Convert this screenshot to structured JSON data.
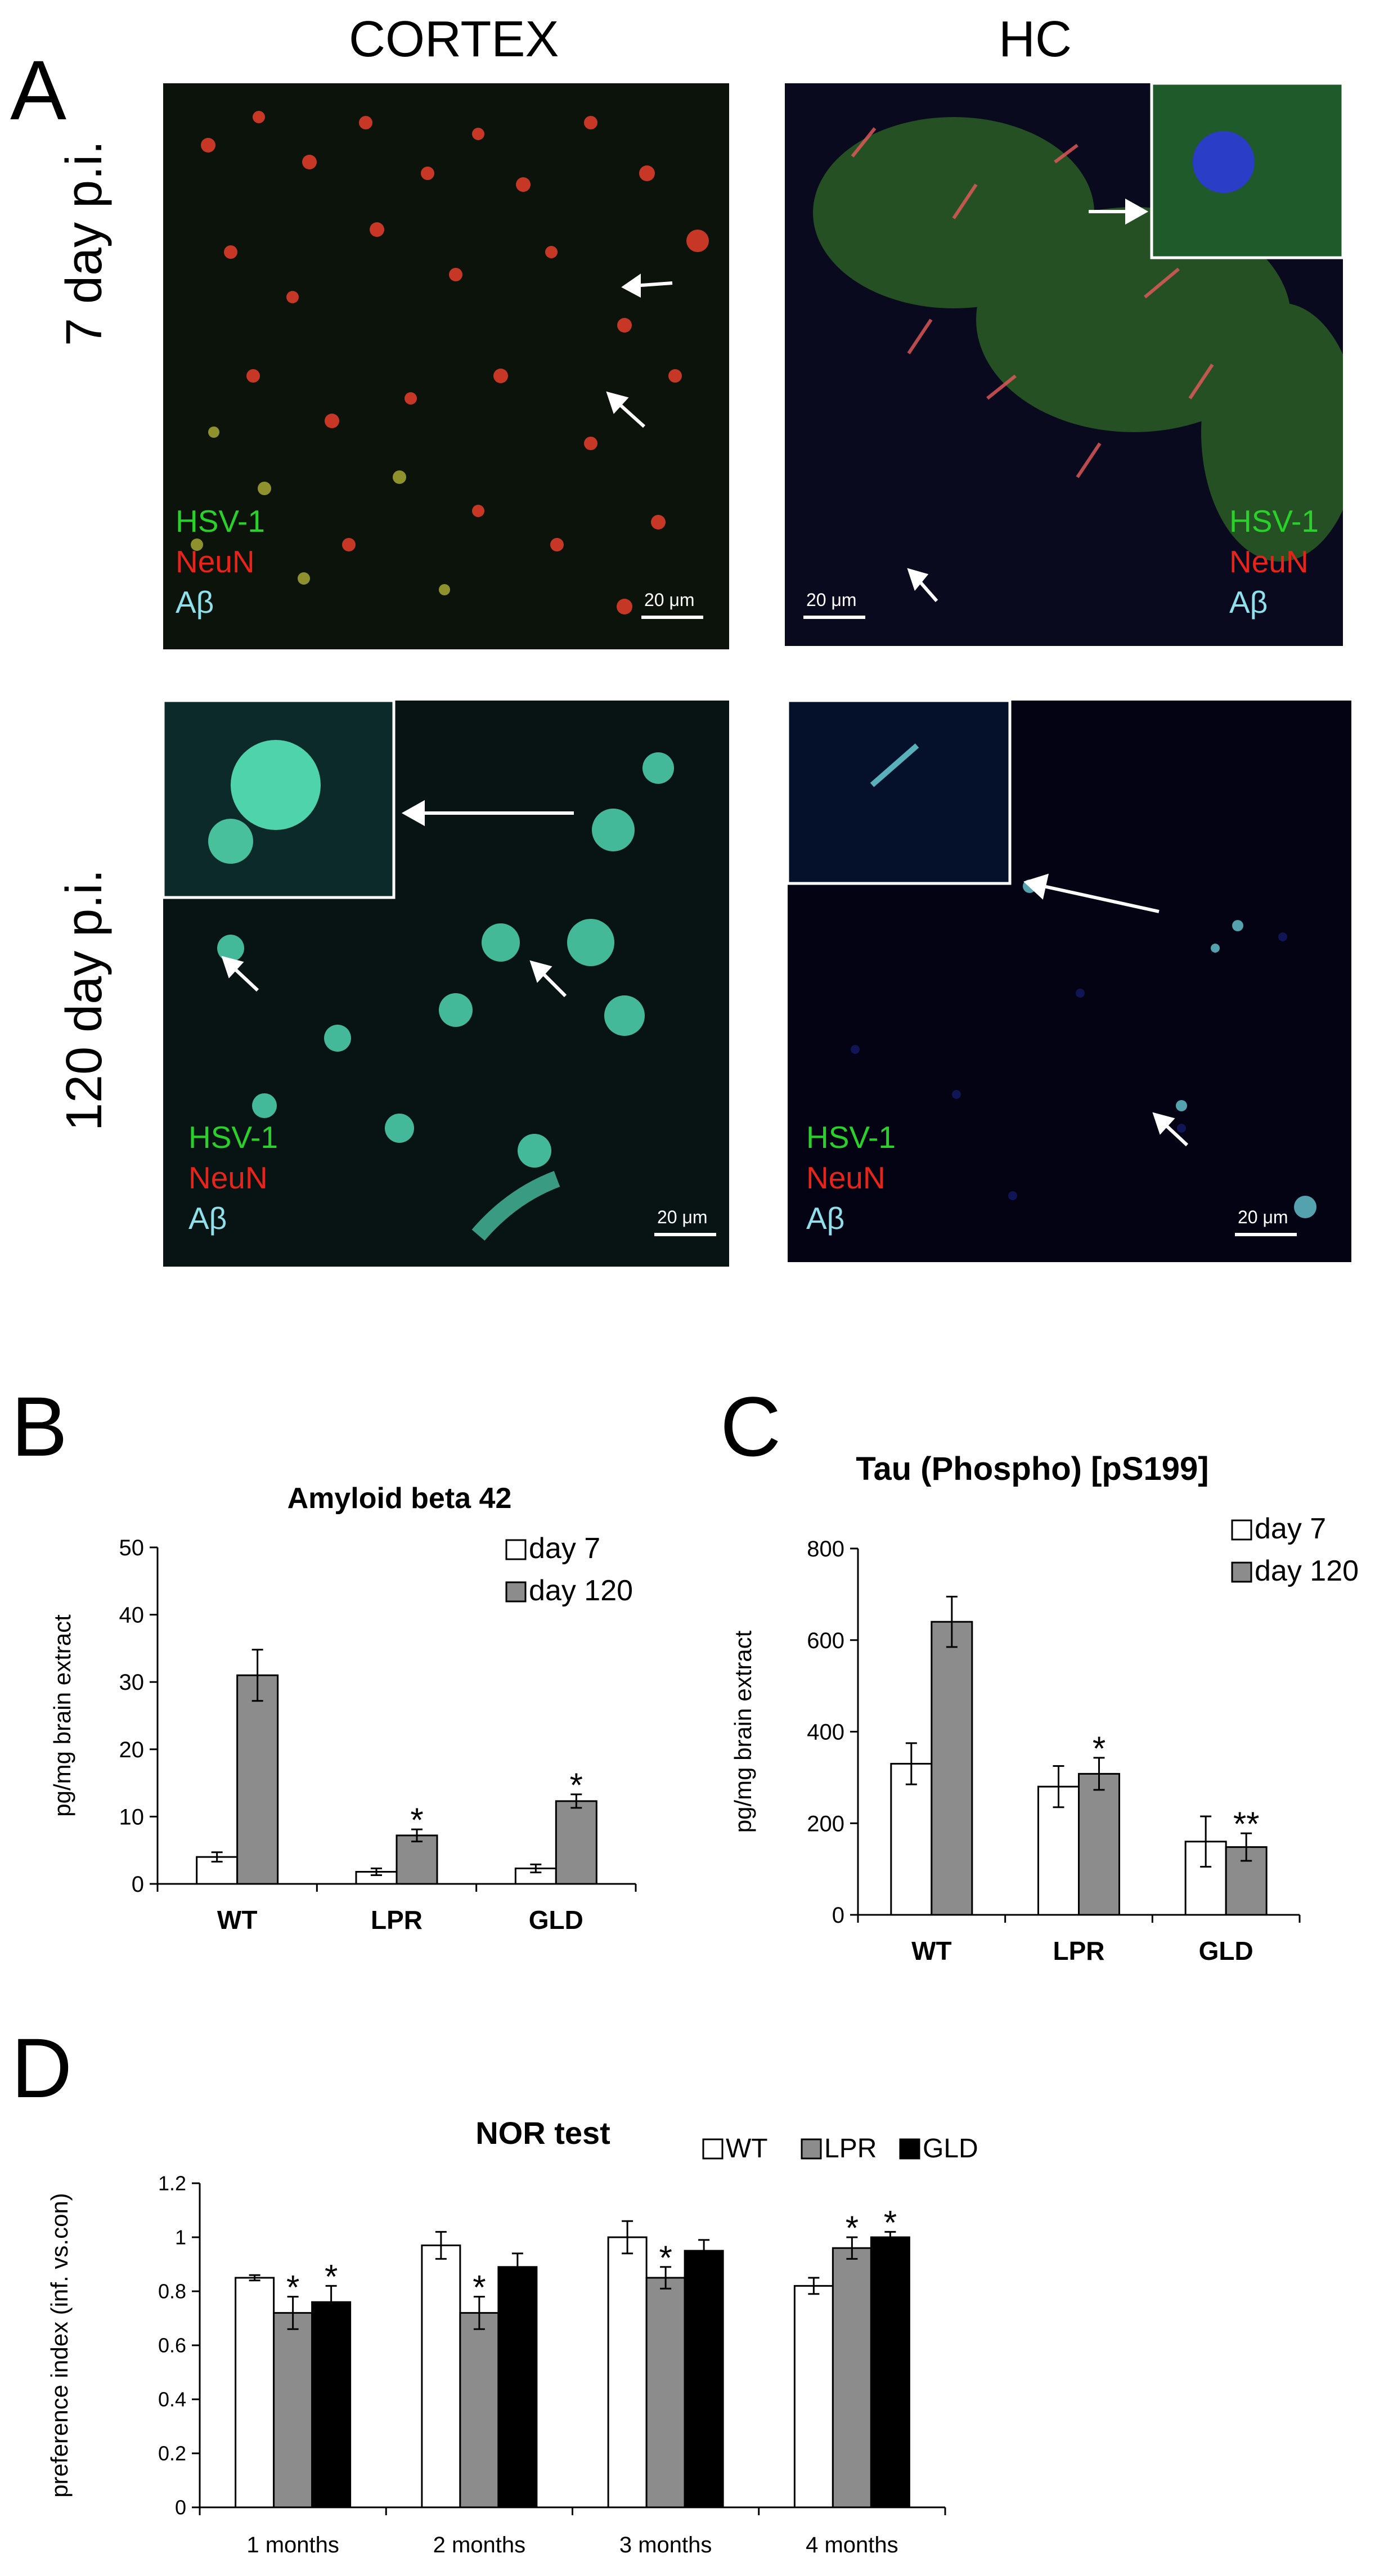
{
  "figure": {
    "panel_A": {
      "letter": "A",
      "column_titles": [
        "CORTEX",
        "HC"
      ],
      "row_titles": [
        "7 day p.i.",
        "120 day p.i."
      ],
      "legend": [
        "HSV-1",
        "NeuN",
        "Aβ"
      ],
      "scale_bar": "20 μm"
    },
    "panel_B": {
      "letter": "B"
    },
    "panel_C": {
      "letter": "C"
    },
    "panel_D": {
      "letter": "D"
    }
  },
  "colors": {
    "hsv1": "#2ad12a",
    "neun": "#e8241a",
    "abeta": "#8fe0ea",
    "white_bar": "#ffffff",
    "gray_bar": "#8c8c8c",
    "black_bar": "#000000"
  },
  "chart_data": [
    {
      "type": "bar",
      "title": "Amyloid beta 42",
      "ylabel": "pg/mg brain extract",
      "categories": [
        "WT",
        "LPR",
        "GLD"
      ],
      "ylim": [
        0,
        50
      ],
      "yticks": [
        "0",
        "10",
        "20",
        "30",
        "40",
        "50"
      ],
      "series": [
        {
          "name": "day 7",
          "values": [
            4,
            1.8,
            2.3
          ],
          "errors": [
            0.7,
            0.5,
            0.6
          ],
          "stars": [
            "",
            "",
            ""
          ]
        },
        {
          "name": "day 120",
          "values": [
            31,
            7.2,
            12.3
          ],
          "errors": [
            3.8,
            0.9,
            1.0
          ],
          "stars": [
            "",
            "*",
            "*"
          ]
        }
      ],
      "legend": "top-right"
    },
    {
      "type": "bar",
      "title": "Tau (Phospho) [pS199]",
      "ylabel": "pg/mg brain extract",
      "categories": [
        "WT",
        "LPR",
        "GLD"
      ],
      "ylim": [
        0,
        800
      ],
      "yticks": [
        "0",
        "200",
        "400",
        "600",
        "800"
      ],
      "series": [
        {
          "name": "day 7",
          "values": [
            330,
            280,
            160
          ],
          "errors": [
            45,
            45,
            55
          ],
          "stars": [
            "",
            "",
            ""
          ]
        },
        {
          "name": "day 120",
          "values": [
            640,
            308,
            148
          ],
          "errors": [
            55,
            35,
            30
          ],
          "stars": [
            "",
            "*",
            "**"
          ]
        }
      ],
      "legend": "top-right"
    },
    {
      "type": "bar",
      "title": "NOR test",
      "ylabel": "preference index (inf. vs.con)",
      "categories": [
        "1 months",
        "2 months",
        "3 months",
        "4 months"
      ],
      "ylim": [
        0,
        1.2
      ],
      "yticks": [
        "0",
        "0.2",
        "0.4",
        "0.6",
        "0.8",
        "1",
        "1.2"
      ],
      "series": [
        {
          "name": "WT",
          "values": [
            0.85,
            0.97,
            1.0,
            0.82
          ],
          "errors": [
            0.01,
            0.05,
            0.06,
            0.03
          ],
          "stars": [
            "",
            "",
            "",
            ""
          ]
        },
        {
          "name": "LPR",
          "values": [
            0.72,
            0.72,
            0.85,
            0.96
          ],
          "errors": [
            0.06,
            0.06,
            0.04,
            0.04
          ],
          "stars": [
            "*",
            "*",
            "*",
            "*"
          ]
        },
        {
          "name": "GLD",
          "values": [
            0.76,
            0.89,
            0.95,
            1.0
          ],
          "errors": [
            0.06,
            0.05,
            0.04,
            0.02
          ],
          "stars": [
            "*",
            "",
            "",
            "*"
          ]
        }
      ],
      "legend": "top-right"
    }
  ]
}
